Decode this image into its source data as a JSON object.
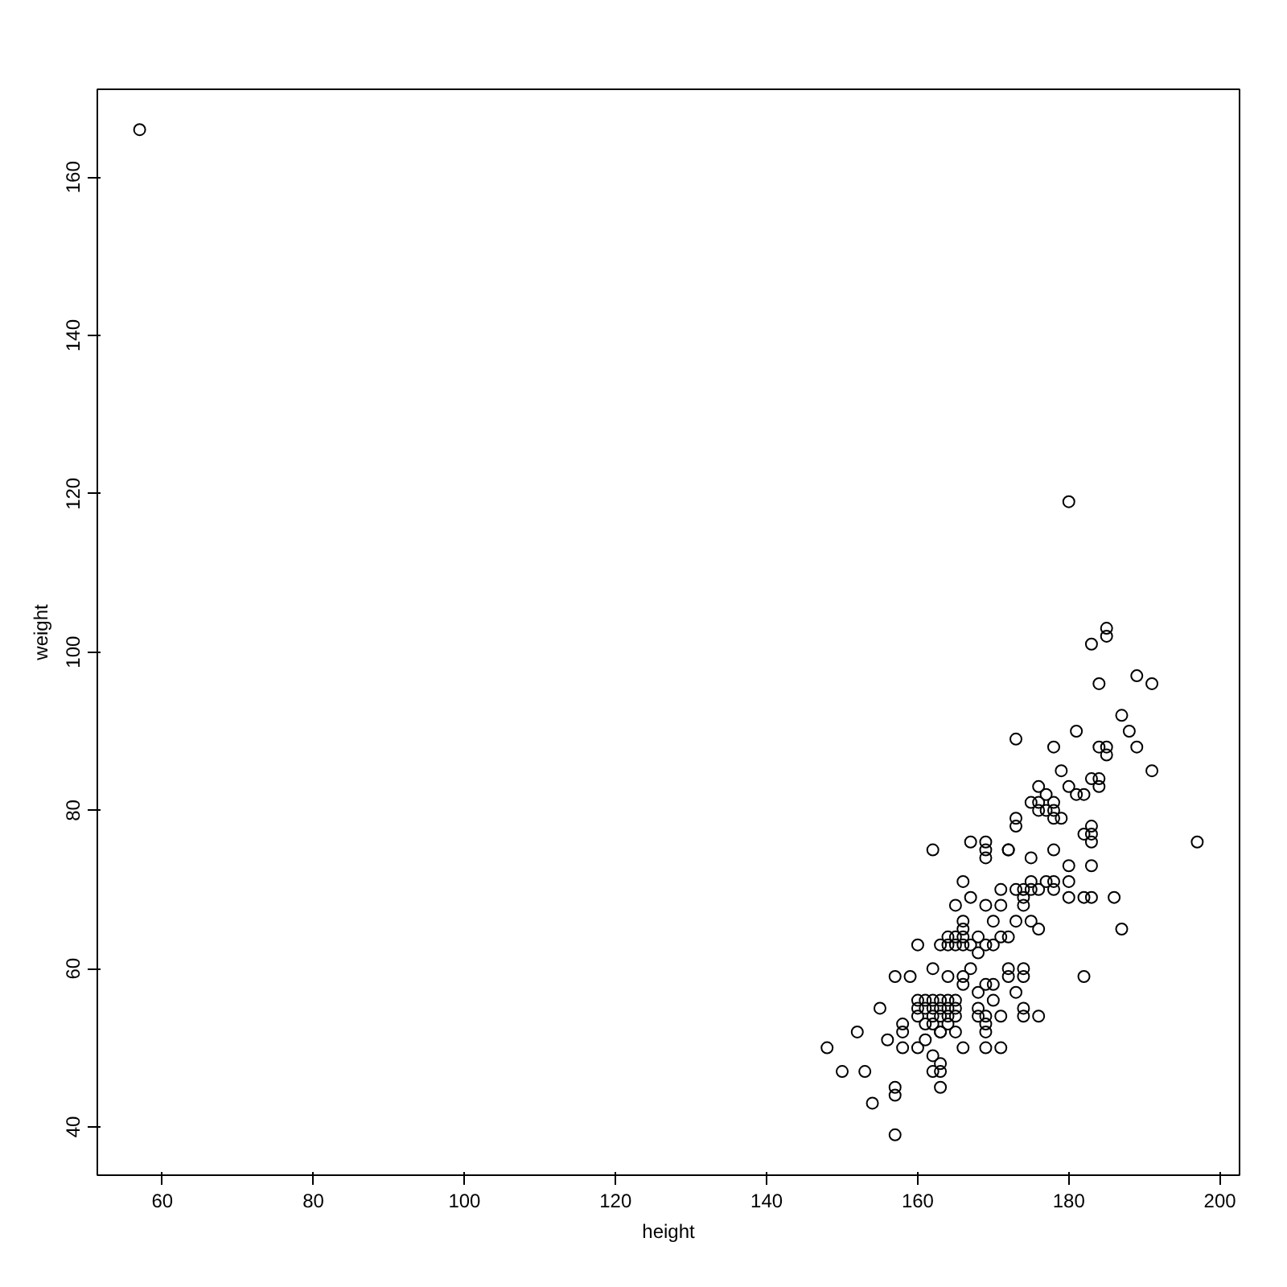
{
  "chart_data": {
    "type": "scatter",
    "xlabel": "height",
    "ylabel": "weight",
    "marker": "circle",
    "grid": false,
    "xlim": [
      51.4,
      202.6
    ],
    "ylim": [
      33.9,
      171.1
    ],
    "xticks": [
      60,
      80,
      100,
      120,
      140,
      160,
      180,
      200
    ],
    "yticks": [
      40,
      60,
      80,
      100,
      120,
      140,
      160
    ],
    "series": [
      {
        "color": "#000000",
        "x": [
          57,
          180,
          185,
          185,
          183,
          189,
          191,
          184,
          187,
          181,
          188,
          189,
          184,
          185,
          185,
          178,
          173,
          191,
          179,
          176,
          183,
          184,
          184,
          180,
          181,
          182,
          177,
          175,
          176,
          178,
          178,
          178,
          176,
          177,
          173,
          173,
          179,
          183,
          183,
          182,
          183,
          197,
          172,
          178,
          180,
          183,
          175,
          177,
          178,
          180,
          171,
          174,
          176,
          178,
          180,
          182,
          183,
          186,
          187,
          182,
          162,
          167,
          169,
          169,
          169,
          172,
          175,
          166,
          173,
          167,
          165,
          169,
          171,
          175,
          174,
          174,
          166,
          166,
          170,
          173,
          175,
          176,
          172,
          171,
          164,
          165,
          166,
          164,
          165,
          166,
          167,
          168,
          168,
          169,
          170,
          160,
          163,
          157,
          159,
          162,
          164,
          166,
          166,
          167,
          169,
          168,
          170,
          172,
          172,
          174,
          174,
          173,
          160,
          161,
          162,
          163,
          164,
          165,
          160,
          161,
          162,
          163,
          164,
          165,
          160,
          162,
          163,
          164,
          165,
          161,
          162,
          164,
          163,
          165,
          155,
          158,
          158,
          152,
          156,
          158,
          160,
          161,
          163,
          166,
          169,
          171,
          168,
          169,
          169,
          169,
          171,
          174,
          174,
          176,
          170,
          168,
          148,
          150,
          153,
          162,
          162,
          163,
          163,
          163,
          157,
          157,
          154,
          157
        ],
        "values": [
          166,
          119,
          103,
          102,
          101,
          97,
          96,
          96,
          92,
          90,
          90,
          88,
          88,
          88,
          87,
          88,
          89,
          85,
          85,
          83,
          84,
          84,
          83,
          83,
          82,
          82,
          82,
          81,
          81,
          81,
          80,
          79,
          80,
          80,
          79,
          78,
          79,
          78,
          77,
          77,
          76,
          76,
          75,
          75,
          73,
          73,
          71,
          71,
          71,
          71,
          70,
          70,
          70,
          70,
          69,
          69,
          69,
          69,
          65,
          59,
          75,
          76,
          76,
          75,
          74,
          75,
          74,
          71,
          70,
          69,
          68,
          68,
          68,
          70,
          69,
          68,
          66,
          65,
          66,
          66,
          66,
          65,
          64,
          64,
          64,
          64,
          64,
          63,
          63,
          63,
          63,
          64,
          62,
          63,
          63,
          63,
          63,
          59,
          59,
          60,
          59,
          59,
          58,
          60,
          58,
          57,
          58,
          60,
          59,
          60,
          59,
          57,
          56,
          56,
          56,
          56,
          56,
          56,
          55,
          55,
          55,
          55,
          55,
          55,
          54,
          54,
          54,
          54,
          54,
          53,
          53,
          53,
          52,
          52,
          55,
          53,
          52,
          52,
          51,
          50,
          50,
          51,
          52,
          50,
          50,
          50,
          54,
          54,
          53,
          52,
          54,
          55,
          54,
          54,
          56,
          55,
          50,
          47,
          47,
          49,
          47,
          48,
          47,
          45,
          45,
          44,
          43,
          39
        ]
      }
    ]
  }
}
